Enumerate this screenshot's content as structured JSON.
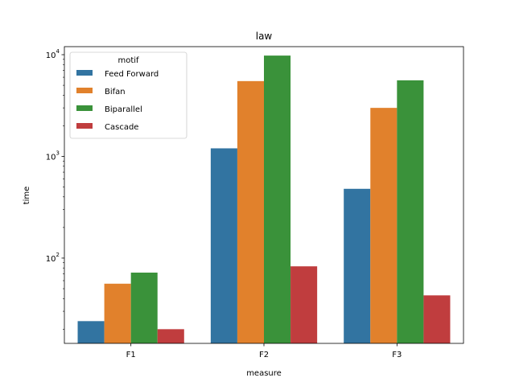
{
  "chart_data": {
    "type": "bar",
    "title": "law",
    "xlabel": "measure",
    "ylabel": "time",
    "yscale": "log",
    "ylim": [
      14.5,
      12000
    ],
    "categories": [
      "F1",
      "F2",
      "F3"
    ],
    "legend": {
      "title": "motif",
      "position": "top-left"
    },
    "grid": false,
    "series": [
      {
        "name": "Feed Forward",
        "color": "#3274a1",
        "values": [
          24,
          1200,
          480
        ]
      },
      {
        "name": "Bifan",
        "color": "#e1812c",
        "values": [
          56,
          5500,
          3000
        ]
      },
      {
        "name": "Biparallel",
        "color": "#3a923a",
        "values": [
          72,
          9800,
          5600
        ]
      },
      {
        "name": "Cascade",
        "color": "#c03d3e",
        "values": [
          20,
          83,
          43
        ]
      }
    ],
    "yticks": [
      {
        "value": 100,
        "base": "10",
        "exp": "2"
      },
      {
        "value": 1000,
        "base": "10",
        "exp": "3"
      },
      {
        "value": 10000,
        "base": "10",
        "exp": "4"
      }
    ]
  }
}
